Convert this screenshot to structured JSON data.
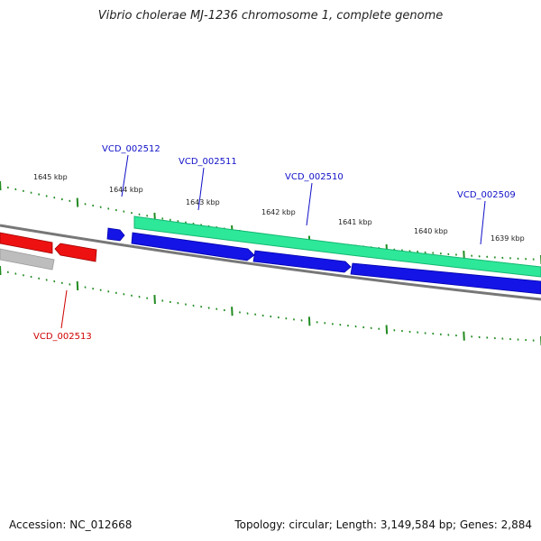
{
  "title": "Vibrio cholerae MJ-1236 chromosome 1, complete genome",
  "accession": "Accession: NC_012668",
  "summary": "Topology: circular; Length: 3,149,584 bp; Genes: 2,884",
  "colors": {
    "forward_gene": "#1414e6",
    "forward_gene_alt": "#0000ff",
    "reverse_gene": "#ee1111",
    "reverse_gene_gray": "#bdbdbd",
    "highlight_band": "#2ee89a",
    "backbone": "#808080",
    "tick": "#228b22",
    "label_forward": "#1010c8",
    "label_reverse": "#d00000"
  },
  "kbp_labels": [
    "1645 kbp",
    "1644 kbp",
    "1643 kbp",
    "1642 kbp",
    "1641 kbp",
    "1640 kbp",
    "1639 kbp"
  ],
  "gene_labels_forward": [
    "VCD_002512",
    "VCD_002511",
    "VCD_002510",
    "VCD_002509"
  ],
  "gene_labels_reverse": [
    "VCD_002513"
  ]
}
